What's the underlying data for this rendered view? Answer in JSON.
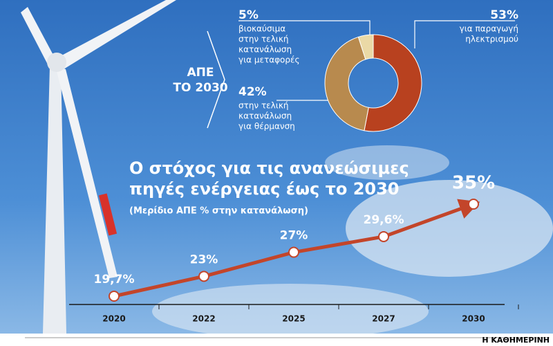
{
  "chart_data": [
    {
      "type": "donut",
      "title": [
        "ΑΠΕ",
        "ΤΟ 2030"
      ],
      "values": [
        53,
        42,
        5
      ],
      "value_labels": [
        "53%",
        "42%",
        "5%"
      ],
      "labels": [
        [
          "για παραγωγή",
          "ηλεκτρισμού"
        ],
        [
          "στην τελική",
          "κατανάλωση",
          "για θέρμανση"
        ],
        [
          "βιοκαύσιμα",
          "στην τελική",
          "κατανάλωση",
          "για μεταφορές"
        ]
      ],
      "colors": [
        "#b8411f",
        "#b88a4e",
        "#ead9a6"
      ]
    },
    {
      "type": "line",
      "title": [
        "Ο στόχος για τις ανανεώσιμες",
        "πηγές ενέργειας έως το 2030"
      ],
      "subtitle": "(Μερίδιο ΑΠΕ % στην κατανάλωση)",
      "categories": [
        "2020",
        "2022",
        "2025",
        "2027",
        "2030"
      ],
      "values": [
        19.7,
        23,
        27,
        29.6,
        35
      ],
      "value_labels": [
        "19,7%",
        "23%",
        "27%",
        "29,6%",
        "35%"
      ],
      "color": "#c3452a"
    }
  ],
  "source": "Η ΚΑΘΗΜΕΡΙΝΗ"
}
